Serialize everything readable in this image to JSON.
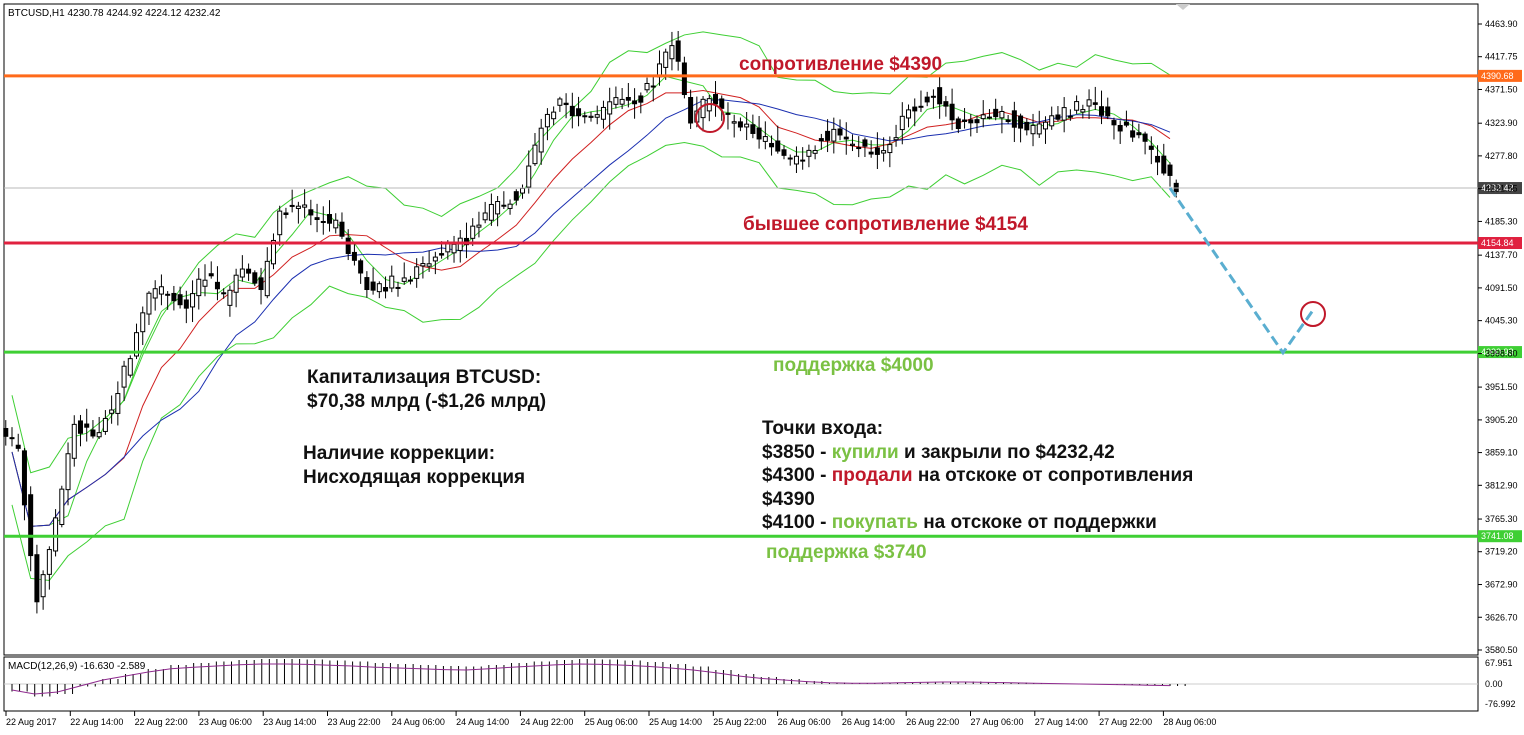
{
  "header": {
    "symbol_line": "BTCUSD,H1  4230.78 4244.92 4224.12 4232.42"
  },
  "price_axis": {
    "ticks": [
      "4463.90",
      "4417.75",
      "4371.50",
      "4323.90",
      "4277.80",
      "4231.55",
      "4185.30",
      "4137.70",
      "4091.50",
      "4045.30",
      "3998.80",
      "3951.50",
      "3905.20",
      "3859.10",
      "3812.90",
      "3765.30",
      "3719.20",
      "3672.90",
      "3626.70",
      "3580.50"
    ]
  },
  "macd": {
    "label": "MACD(12,26,9) -16.630 -2.589",
    "ticks": [
      "67.951",
      "0.00",
      "-76.992"
    ]
  },
  "time_axis": {
    "ticks": [
      "22 Aug 2017",
      "22 Aug 14:00",
      "22 Aug 22:00",
      "23 Aug 06:00",
      "23 Aug 14:00",
      "23 Aug 22:00",
      "24 Aug 06:00",
      "24 Aug 14:00",
      "24 Aug 22:00",
      "25 Aug 06:00",
      "25 Aug 14:00",
      "25 Aug 22:00",
      "26 Aug 06:00",
      "26 Aug 14:00",
      "26 Aug 22:00",
      "27 Aug 06:00",
      "27 Aug 14:00",
      "27 Aug 22:00",
      "28 Aug 06:00"
    ]
  },
  "levels": [
    {
      "value": 4390.68,
      "label": "4390.68",
      "color": "#ff6a1a"
    },
    {
      "value": 4232.42,
      "label": "4232.42",
      "color": "#444444"
    },
    {
      "value": 4154.84,
      "label": "4154.84",
      "color": "#e0213f"
    },
    {
      "value": 4000.93,
      "label": "4000.93",
      "color": "#3fcf34"
    },
    {
      "value": 3741.08,
      "label": "3741.08",
      "color": "#3fcf34"
    }
  ],
  "annotations": {
    "resistance": "сопротивление $4390",
    "former_resistance": "бывшее сопротивление $4154",
    "support1": "поддержка $4000",
    "support2": "поддержка $3740",
    "cap_title": "Капитализация BTCUSD:",
    "cap_value": "$70,38 млрд (-$1,26 млрд)",
    "corr_title": "Наличие коррекции:",
    "corr_value": "Нисходящая коррекция",
    "entries_title": "Точки входа:",
    "e1_a": "$3850 - ",
    "e1_b": "купили",
    "e1_c": " и закрыли по $4232,42",
    "e2_a": "$4300 - ",
    "e2_b": "продали",
    "e2_c": " на отскоке от сопротивления",
    "e3": "$4390",
    "e4_a": "$4100 - ",
    "e4_b": "покупать",
    "e4_c": " на отскоке от поддержки"
  },
  "chart_data": {
    "type": "candlestick",
    "symbol": "BTCUSD",
    "timeframe": "H1",
    "x": [
      "22 Aug 2017",
      "22 Aug 14:00",
      "22 Aug 22:00",
      "23 Aug 06:00",
      "23 Aug 14:00",
      "23 Aug 22:00",
      "24 Aug 06:00",
      "24 Aug 14:00",
      "24 Aug 22:00",
      "25 Aug 06:00",
      "25 Aug 14:00",
      "25 Aug 22:00",
      "26 Aug 06:00",
      "26 Aug 14:00",
      "26 Aug 22:00",
      "27 Aug 06:00",
      "27 Aug 14:00",
      "27 Aug 22:00",
      "28 Aug 06:00"
    ],
    "ylim": [
      3580.5,
      4463.9
    ],
    "close_path": [
      3860,
      3650,
      3760,
      3900,
      3880,
      3920,
      4000,
      4090,
      4085,
      4060,
      4110,
      4080,
      4120,
      4090,
      4200,
      4210,
      4190,
      4180,
      4130,
      4080,
      4100,
      4110,
      4130,
      4150,
      4160,
      4200,
      4210,
      4230,
      4320,
      4350,
      4330,
      4340,
      4360,
      4350,
      4380,
      4440,
      4330,
      4360,
      4330,
      4320,
      4300,
      4270,
      4280,
      4300,
      4310,
      4290,
      4280,
      4310,
      4350,
      4370,
      4330,
      4320,
      4340,
      4330,
      4310,
      4320,
      4340,
      4350,
      4340,
      4320,
      4300,
      4270,
      4232.42
    ],
    "projection": [
      {
        "x": "28 Aug 06:00",
        "y": 4232.42
      },
      {
        "y": 4000
      },
      {
        "y": 4060
      }
    ],
    "macd_hist_shape": [
      -15,
      -25,
      -20,
      -5,
      10,
      20,
      30,
      38,
      42,
      45,
      48,
      50,
      50,
      49,
      47,
      45,
      42,
      40,
      38,
      36,
      35,
      38,
      42,
      45,
      48,
      50,
      49,
      47,
      44,
      40,
      35,
      28,
      20,
      14,
      10,
      6,
      3,
      2,
      2,
      3,
      4,
      5,
      5,
      4,
      3,
      2,
      1,
      0,
      -1,
      -2,
      -3,
      -4
    ]
  }
}
